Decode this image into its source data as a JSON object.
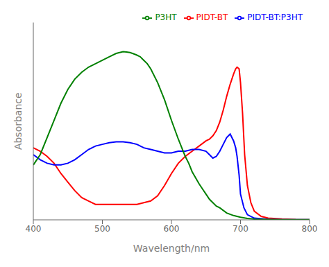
{
  "chart_data": {
    "type": "line",
    "title": "",
    "xlabel": "Wavelength/nm",
    "ylabel": "Absorbance",
    "xlim": [
      400,
      800
    ],
    "xticks": [
      400,
      500,
      600,
      700,
      800
    ],
    "ylim": [
      0,
      1.15
    ],
    "tick_labels": "x",
    "grid": false,
    "legend": "upper right",
    "series": [
      {
        "name": "PIDT-BT",
        "color": "red",
        "x": [
          400,
          410,
          420,
          430,
          440,
          450,
          460,
          470,
          480,
          490,
          500,
          510,
          520,
          530,
          540,
          550,
          560,
          570,
          580,
          590,
          600,
          610,
          620,
          630,
          640,
          650,
          655,
          660,
          665,
          670,
          675,
          680,
          685,
          690,
          693,
          695,
          698,
          700,
          703,
          706,
          710,
          715,
          720,
          730,
          740,
          760,
          780,
          800
        ],
        "values": [
          0.42,
          0.4,
          0.37,
          0.33,
          0.27,
          0.22,
          0.17,
          0.13,
          0.11,
          0.09,
          0.09,
          0.09,
          0.09,
          0.09,
          0.09,
          0.09,
          0.1,
          0.11,
          0.14,
          0.2,
          0.27,
          0.33,
          0.37,
          0.4,
          0.43,
          0.46,
          0.47,
          0.49,
          0.52,
          0.57,
          0.64,
          0.72,
          0.79,
          0.85,
          0.88,
          0.89,
          0.88,
          0.8,
          0.62,
          0.38,
          0.2,
          0.1,
          0.05,
          0.02,
          0.01,
          0.005,
          0.002,
          0.001
        ]
      },
      {
        "name": "PIDT-BT:P3HT",
        "color": "blue",
        "x": [
          400,
          410,
          420,
          430,
          440,
          450,
          460,
          470,
          480,
          490,
          500,
          510,
          520,
          530,
          540,
          550,
          560,
          570,
          580,
          590,
          600,
          610,
          620,
          630,
          640,
          650,
          655,
          660,
          665,
          670,
          675,
          680,
          685,
          690,
          693,
          695,
          698,
          700,
          705,
          710,
          720,
          740,
          760,
          800
        ],
        "values": [
          0.38,
          0.35,
          0.33,
          0.32,
          0.32,
          0.33,
          0.35,
          0.38,
          0.41,
          0.43,
          0.44,
          0.45,
          0.455,
          0.455,
          0.45,
          0.44,
          0.42,
          0.41,
          0.4,
          0.39,
          0.39,
          0.4,
          0.4,
          0.41,
          0.41,
          0.4,
          0.38,
          0.36,
          0.37,
          0.4,
          0.44,
          0.48,
          0.5,
          0.46,
          0.42,
          0.37,
          0.26,
          0.15,
          0.07,
          0.03,
          0.01,
          0.003,
          0.001,
          0.001
        ]
      },
      {
        "name": "P3HT",
        "color": "green",
        "x": [
          400,
          410,
          420,
          430,
          440,
          450,
          460,
          470,
          480,
          490,
          500,
          510,
          520,
          525,
          530,
          535,
          540,
          545,
          550,
          555,
          560,
          565,
          570,
          580,
          590,
          600,
          610,
          615,
          620,
          625,
          630,
          640,
          645,
          650,
          655,
          660,
          665,
          670,
          680,
          690,
          700,
          710,
          720,
          740,
          760,
          800
        ],
        "values": [
          0.32,
          0.38,
          0.48,
          0.58,
          0.68,
          0.76,
          0.82,
          0.86,
          0.89,
          0.91,
          0.93,
          0.95,
          0.97,
          0.975,
          0.98,
          0.978,
          0.975,
          0.968,
          0.96,
          0.95,
          0.93,
          0.91,
          0.88,
          0.8,
          0.7,
          0.58,
          0.47,
          0.42,
          0.37,
          0.33,
          0.28,
          0.21,
          0.18,
          0.15,
          0.12,
          0.1,
          0.08,
          0.07,
          0.04,
          0.025,
          0.015,
          0.008,
          0.004,
          0.002,
          0.001,
          0.001
        ]
      }
    ]
  }
}
